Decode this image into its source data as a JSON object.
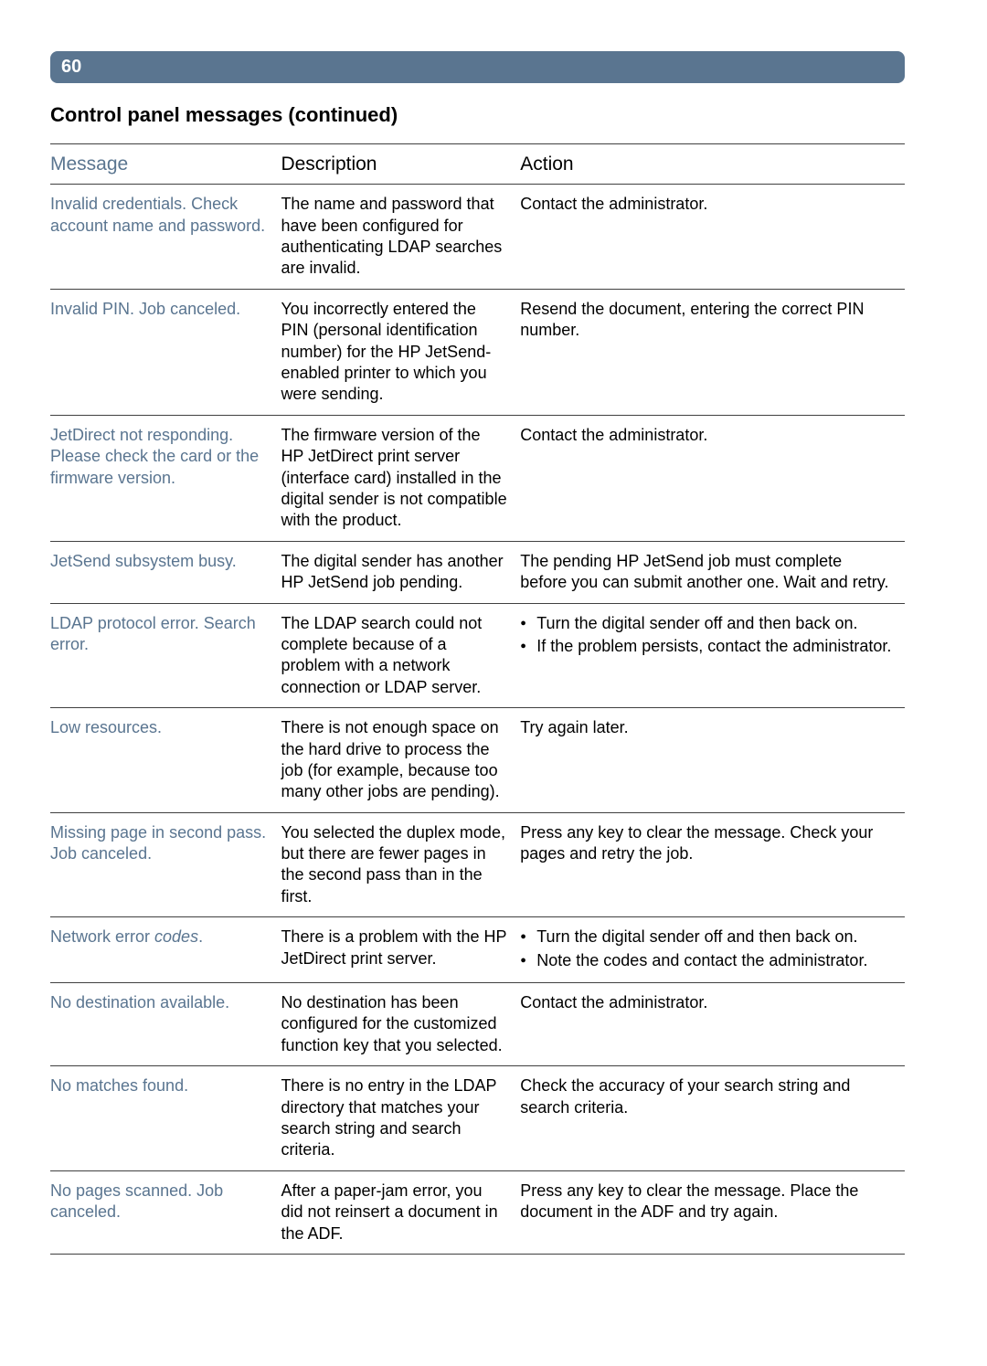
{
  "page_number": "60",
  "section_title": "Control panel messages (continued)",
  "table": {
    "headers": {
      "message": "Message",
      "description": "Description",
      "action": "Action"
    },
    "rows": [
      {
        "message": "Invalid credentials. Check account name and password.",
        "description": "The name and password that have been configured for authenticating LDAP searches are invalid.",
        "action": "Contact the administrator."
      },
      {
        "message": "Invalid PIN. Job canceled.",
        "description": "You incorrectly entered the PIN (personal identification number) for the HP JetSend-enabled printer to which you were sending.",
        "action": "Resend the document, entering the correct PIN number."
      },
      {
        "message": "JetDirect not responding. Please check the card or the firmware version.",
        "description": "The firmware version of the HP JetDirect print server (interface card) installed in the digital sender is not compatible with the product.",
        "action": "Contact the administrator."
      },
      {
        "message": "JetSend subsystem busy.",
        "description": "The digital sender has another HP JetSend job pending.",
        "action": "The pending HP JetSend job must complete before you can submit another one. Wait and retry."
      },
      {
        "message": "LDAP protocol error. Search error.",
        "description": "The LDAP search could not complete because of a problem with a network connection or LDAP server.",
        "action_list": [
          "Turn the digital sender off and then back on.",
          "If the problem persists, contact the administrator."
        ]
      },
      {
        "message": "Low resources.",
        "description": "There is not enough space on the hard drive to process the job (for example, because too many other jobs are pending).",
        "action": "Try again later."
      },
      {
        "message": "Missing page in second pass. Job canceled.",
        "description": "You selected the duplex mode, but there are fewer pages in the second pass than in the first.",
        "action": "Press any key to clear the message. Check your pages and retry the job."
      },
      {
        "message_prefix": "Network error ",
        "message_italic": "codes",
        "message_suffix": ".",
        "description": "There is a problem with the HP JetDirect print server.",
        "action_list": [
          "Turn the digital sender off and then back on.",
          "Note the codes and contact the administrator."
        ]
      },
      {
        "message": "No destination available.",
        "description": "No destination has been configured for the customized function key that you selected.",
        "action": "Contact the administrator."
      },
      {
        "message": "No matches found.",
        "description": "There is no entry in the LDAP directory that matches your search string and search criteria.",
        "action": "Check the accuracy of your search string and search criteria."
      },
      {
        "message": "No pages scanned.  Job canceled.",
        "description": "After a paper-jam error, you did not reinsert a document in the ADF.",
        "action": "Press any key to clear the message. Place the document in the ADF and try again."
      }
    ]
  },
  "style": {
    "accent_color": "#5a7590",
    "text_color": "#000000",
    "border_color": "#404040",
    "body_fontsize": 18,
    "header_fontsize": 21,
    "title_fontsize": 22
  }
}
